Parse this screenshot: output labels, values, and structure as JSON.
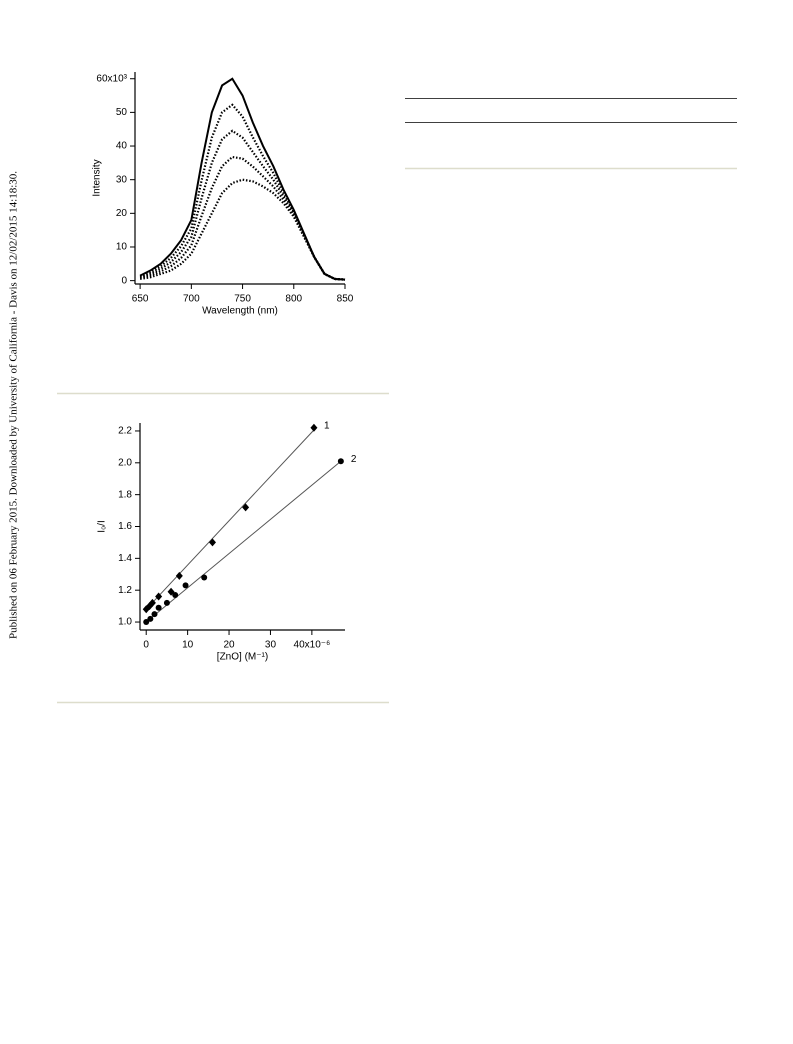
{
  "sidebar": "Published on 06 February 2015. Downloaded by University of California - Davis on 12/02/2015 14:18:30.",
  "chart_data": [
    {
      "type": "line",
      "xlabel": "Wavelength (nm)",
      "ylabel": "Intensity",
      "x": [
        650,
        660,
        670,
        680,
        690,
        700,
        710,
        720,
        730,
        740,
        750,
        760,
        770,
        780,
        790,
        800,
        810,
        820,
        830,
        840,
        850
      ],
      "xlim": [
        645,
        850
      ],
      "xticks": [
        650,
        700,
        750,
        800,
        850
      ],
      "ylim": [
        -1,
        62
      ],
      "yticks": [
        0,
        10,
        20,
        30,
        40,
        50,
        {
          "value": 60,
          "label": "60x10³"
        }
      ],
      "series": [
        {
          "color": "#000000",
          "style": "solid",
          "values": [
            1.5,
            3,
            5,
            8,
            12,
            18,
            35,
            50,
            58,
            60,
            55,
            47,
            40,
            34,
            27,
            21,
            14,
            7,
            2,
            0.5,
            0.3
          ]
        },
        {
          "color": "#000000",
          "style": "dotted",
          "values": [
            1.25,
            2.5,
            4.25,
            6.75,
            10.25,
            15.5,
            29.75,
            42.5,
            50,
            52.25,
            48.75,
            42.6,
            37,
            32,
            26,
            20.5,
            13.75,
            7,
            2,
            0.5,
            0.3
          ]
        },
        {
          "color": "#000000",
          "style": "dotted",
          "values": [
            1,
            2,
            3.5,
            5.5,
            8.5,
            13,
            24.5,
            35,
            42,
            44.5,
            42.5,
            38.25,
            34,
            30,
            25,
            20,
            13.5,
            7,
            2,
            0.5,
            0.3
          ]
        },
        {
          "color": "#000000",
          "style": "dotted",
          "values": [
            0.75,
            1.5,
            2.75,
            4.25,
            6.75,
            10.5,
            19.25,
            27.5,
            34,
            36.75,
            36.25,
            33.9,
            31,
            28,
            24,
            19.5,
            13.25,
            7,
            2,
            0.5,
            0.3
          ]
        },
        {
          "color": "#000000",
          "style": "dotted",
          "values": [
            0.5,
            1,
            2,
            3,
            5,
            8,
            14,
            20,
            26,
            29,
            30,
            29.5,
            28,
            26,
            23,
            19,
            13,
            7,
            2,
            0.5,
            0.3
          ]
        }
      ]
    },
    {
      "type": "scatter",
      "xlabel": "[ZnO] (M⁻¹)",
      "ylabel": "I₀/I",
      "xlim": [
        -1.5,
        48
      ],
      "xticks": [
        0,
        10,
        20,
        30,
        {
          "value": 40,
          "label": "40x10⁻⁶"
        }
      ],
      "ylim": [
        0.95,
        2.25
      ],
      "yticks": [
        {
          "value": 1,
          "label": "1.0"
        },
        {
          "value": 1.2,
          "label": "1.2"
        },
        {
          "value": 1.4,
          "label": "1.4"
        },
        {
          "value": 1.6,
          "label": "1.6"
        },
        {
          "value": 1.8,
          "label": "1.8"
        },
        {
          "value": 2,
          "label": "2.0"
        },
        {
          "value": 2.2,
          "label": "2.2"
        }
      ],
      "series": [
        {
          "name": "1",
          "color": "#000000",
          "marker": "diamond",
          "x": [
            0,
            0.8,
            1.5,
            3,
            6,
            8,
            16,
            24,
            40.5
          ],
          "values": [
            1.08,
            1.1,
            1.12,
            1.16,
            1.19,
            1.29,
            1.5,
            1.72,
            2.22
          ],
          "fit": {
            "x": [
              0,
              41
            ],
            "values": [
              1.08,
              2.22
            ]
          }
        },
        {
          "name": "2",
          "color": "#000000",
          "marker": "circle",
          "x": [
            0,
            1,
            2,
            3,
            5,
            7,
            9.5,
            14,
            47
          ],
          "values": [
            1,
            1.02,
            1.05,
            1.09,
            1.12,
            1.17,
            1.23,
            1.28,
            2.01
          ],
          "fit": {
            "x": [
              0,
              47
            ],
            "values": [
              1,
              2.01
            ]
          }
        }
      ]
    }
  ]
}
